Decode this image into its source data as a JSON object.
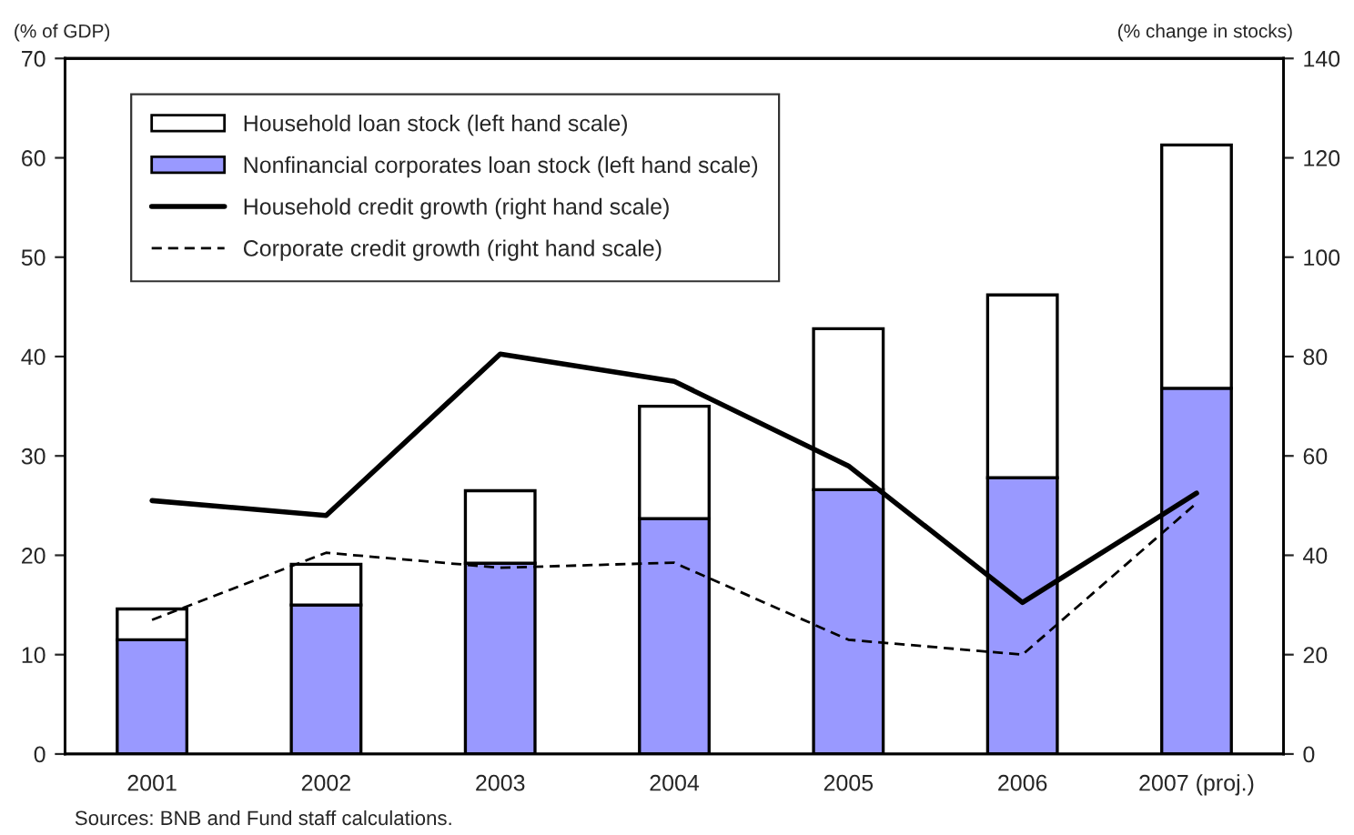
{
  "chart_data": {
    "type": "bar",
    "stacked": true,
    "ylabel": "(% of GDP)",
    "y2label": "(% change in stocks)",
    "categories": [
      "2001",
      "2002",
      "2003",
      "2004",
      "2005",
      "2006",
      "2007 (proj.)"
    ],
    "series": [
      {
        "name": "Nonfinancial corporates loan stock (left hand scale)",
        "color": "#9999ff",
        "values": [
          11.5,
          15.0,
          19.2,
          23.7,
          26.6,
          27.8,
          36.8
        ]
      },
      {
        "name": "Household loan stock (left hand scale)",
        "color": "#ffffff",
        "values": [
          3.1,
          4.1,
          7.3,
          11.3,
          16.2,
          18.4,
          24.5
        ]
      },
      {
        "name": "Household credit growth (right hand scale)",
        "type": "line",
        "axis": "y2",
        "color": "#000000",
        "line_style": "solid",
        "values": [
          51,
          48,
          80.5,
          75,
          58,
          30.5,
          52.5
        ]
      },
      {
        "name": "Corporate credit growth (right hand scale)",
        "type": "line",
        "axis": "y2",
        "color": "#000000",
        "line_style": "dashed",
        "values": [
          27,
          40.5,
          37.5,
          38.5,
          23,
          20,
          50.5
        ]
      }
    ],
    "ylim": [
      0,
      70
    ],
    "yticks": [
      0,
      10,
      20,
      30,
      40,
      50,
      60,
      70
    ],
    "y2lim": [
      0,
      140
    ],
    "y2ticks": [
      0,
      20,
      40,
      60,
      80,
      100,
      120,
      140
    ],
    "legend": "top left",
    "grid": false,
    "annotations": [
      "Sources: BNB and Fund staff calculations."
    ]
  }
}
